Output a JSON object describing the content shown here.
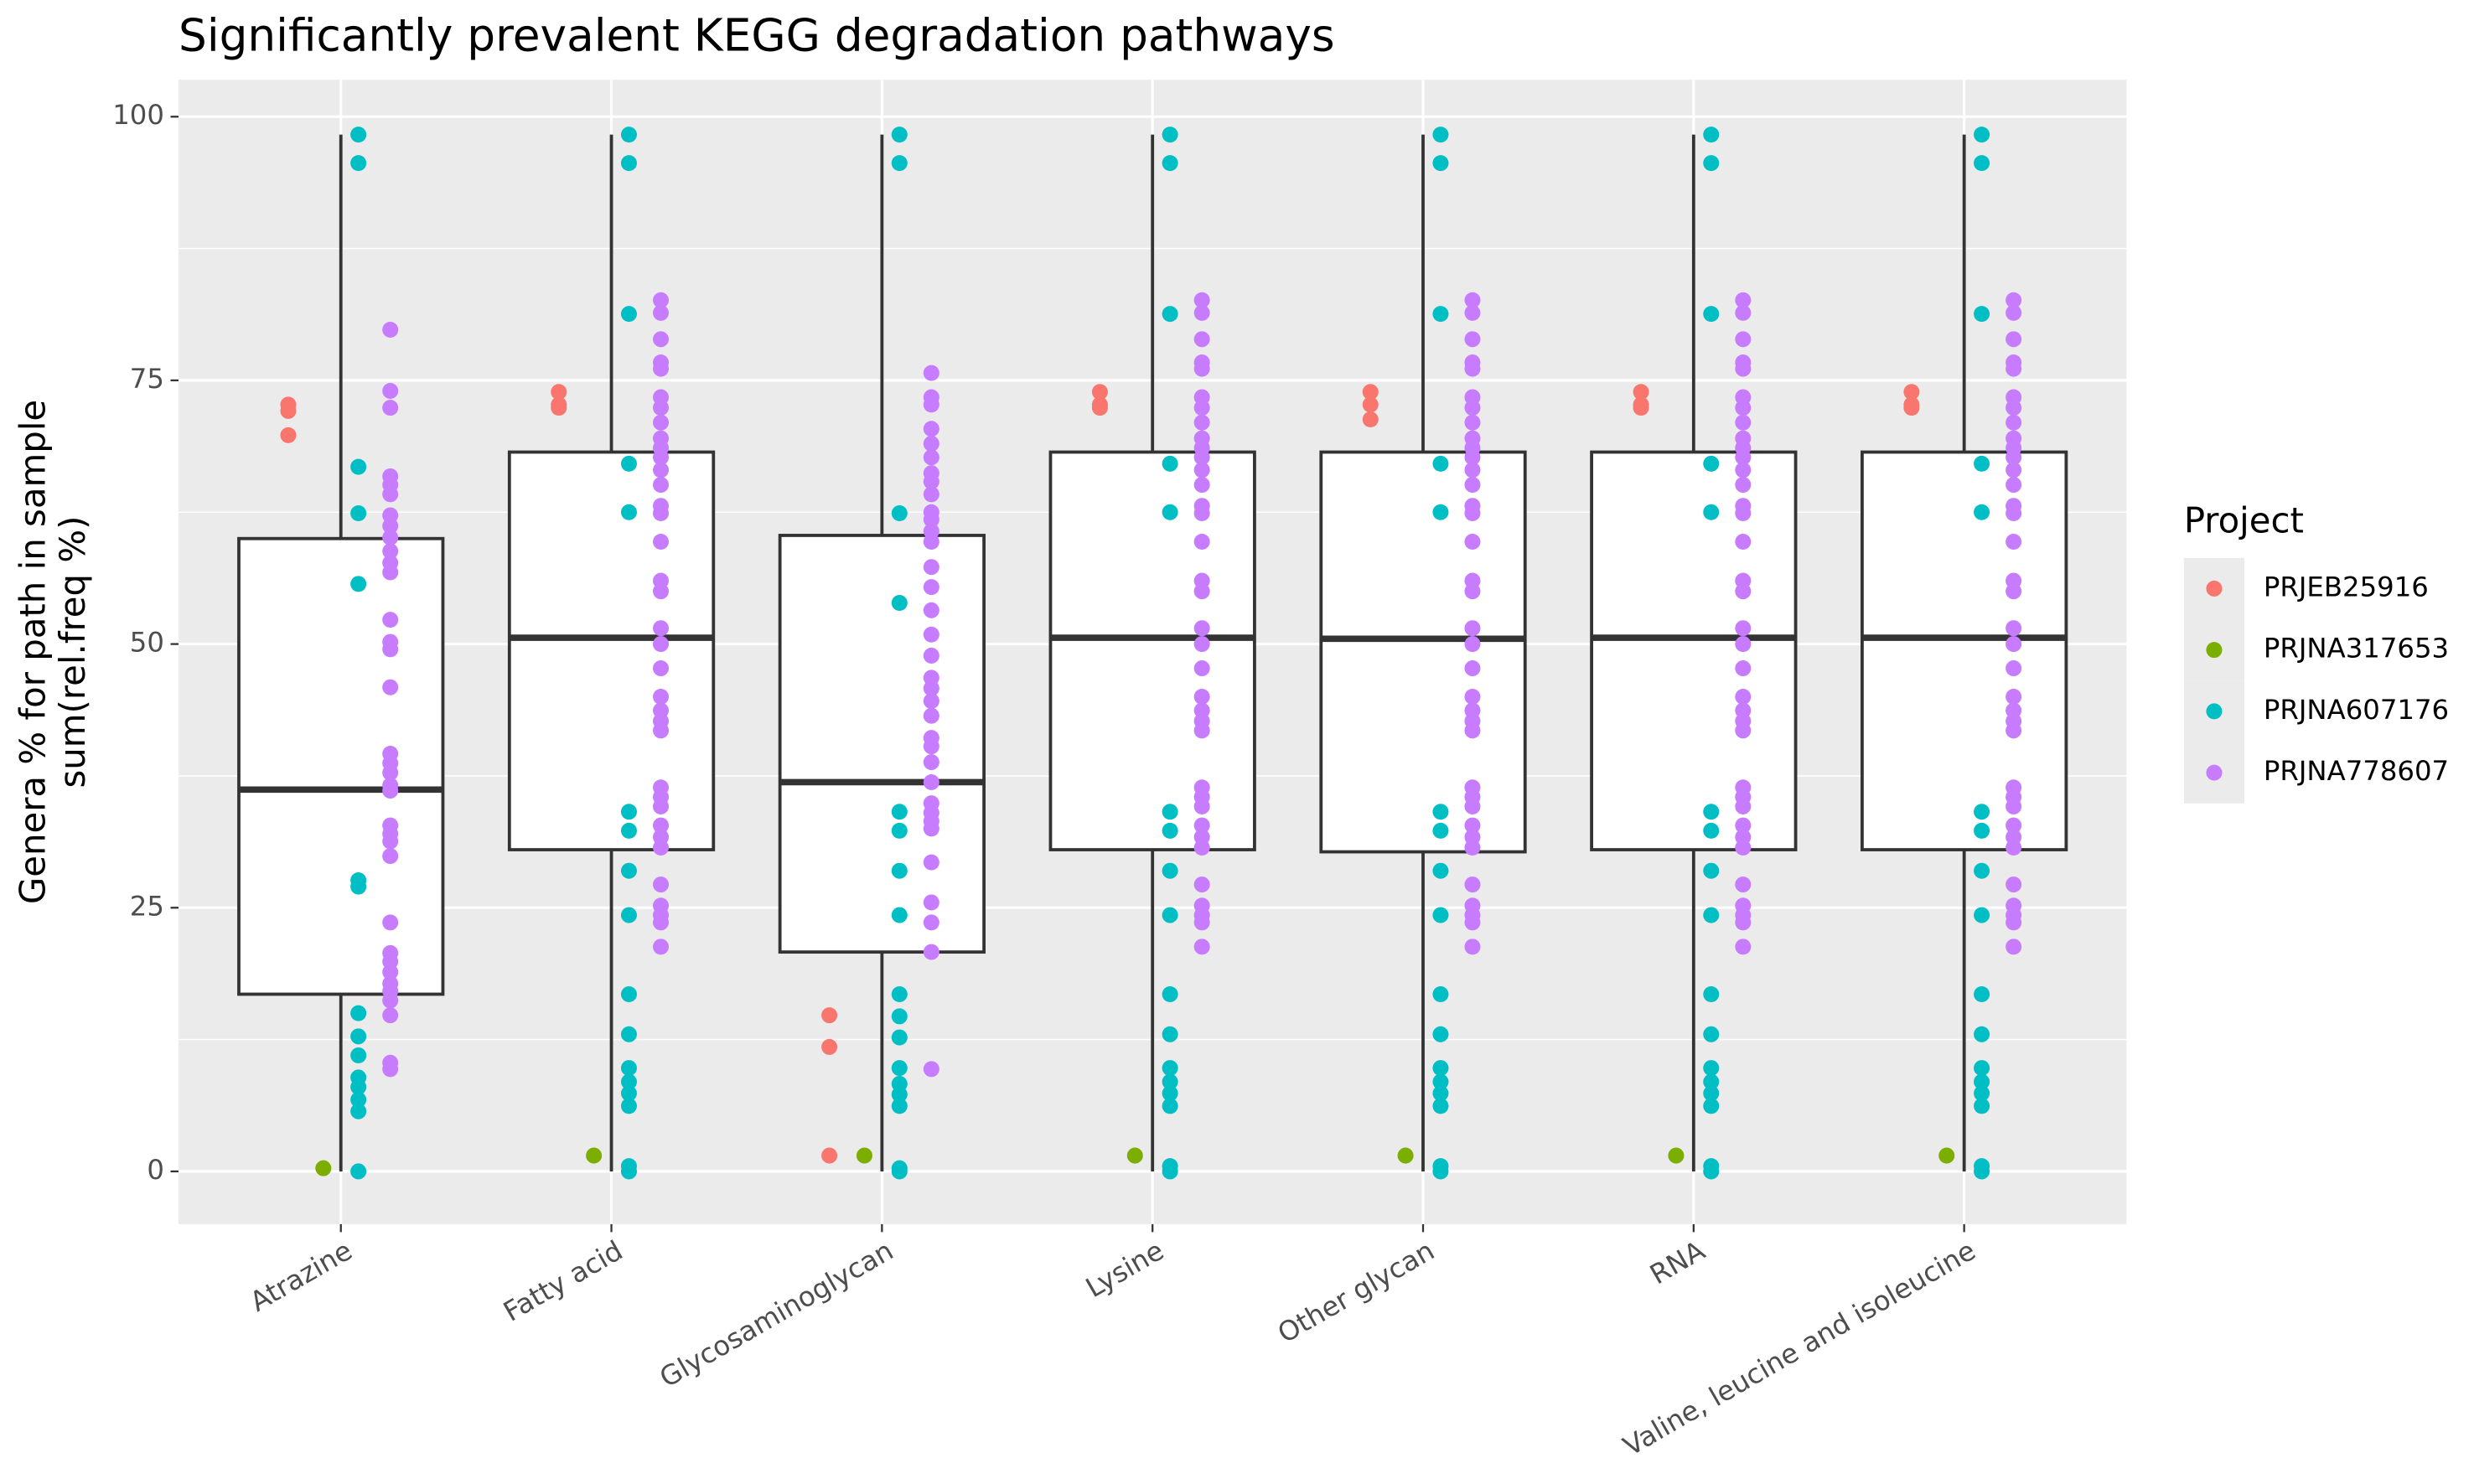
{
  "chart_data": {
    "type": "box",
    "title": "Significantly prevalent KEGG degradation pathways",
    "ylabel": [
      "Genera % for path in sample",
      "sum(rel.freq %)"
    ],
    "legend_title": "Project",
    "categories": [
      "Atrazine",
      "Fatty acid",
      "Glycosaminoglycan",
      "Lysine",
      "Other glycan",
      "RNA",
      "Valine, leucine and isoleucine"
    ],
    "ylim": [
      -5,
      103.5
    ],
    "yticks": [
      0,
      25,
      50,
      75,
      100
    ],
    "yminor": [
      12.5,
      37.5,
      62.5,
      87.5
    ],
    "grid": true,
    "legend": "right",
    "boxes": [
      {
        "whislo": 0,
        "q1": 16.8,
        "med": 36.2,
        "q3": 60.0,
        "whishi": 98.3
      },
      {
        "whislo": 0,
        "q1": 30.5,
        "med": 50.6,
        "q3": 68.2,
        "whishi": 98.3
      },
      {
        "whislo": 0,
        "q1": 20.8,
        "med": 36.9,
        "q3": 60.3,
        "whishi": 98.3
      },
      {
        "whislo": 0,
        "q1": 30.5,
        "med": 50.6,
        "q3": 68.2,
        "whishi": 98.3
      },
      {
        "whislo": 0,
        "q1": 30.3,
        "med": 50.5,
        "q3": 68.2,
        "whishi": 98.3
      },
      {
        "whislo": 0,
        "q1": 30.5,
        "med": 50.6,
        "q3": 68.2,
        "whishi": 98.3
      },
      {
        "whislo": 0,
        "q1": 30.5,
        "med": 50.6,
        "q3": 68.2,
        "whishi": 98.3
      }
    ],
    "series": [
      {
        "name": "PRJEB25916",
        "color": "#F8766D",
        "values": [
          [
            72.7,
            72.1,
            69.8
          ],
          [
            73.9,
            72.7,
            72.4
          ],
          [
            14.8,
            11.8,
            1.5
          ],
          [
            73.9,
            72.7,
            72.4
          ],
          [
            73.9,
            72.7,
            71.3
          ],
          [
            73.9,
            72.7,
            72.4
          ],
          [
            73.9,
            72.7,
            72.4
          ]
        ]
      },
      {
        "name": "PRJNA317653",
        "color": "#7CAE00",
        "values": [
          [
            0.3
          ],
          [
            1.5
          ],
          [
            1.5
          ],
          [
            1.5
          ],
          [
            1.5
          ],
          [
            1.5
          ],
          [
            1.5
          ]
        ]
      },
      {
        "name": "PRJNA607176",
        "color": "#00BFC4",
        "values": [
          [
            98.3,
            95.6,
            66.8,
            62.4,
            55.7,
            27.6,
            27.0,
            15.0,
            12.8,
            11.0,
            8.9,
            8.0,
            6.8,
            5.7,
            0
          ],
          [
            98.3,
            95.6,
            81.3,
            67.1,
            62.5,
            34.1,
            32.3,
            28.5,
            24.3,
            16.8,
            13.0,
            9.8,
            8.5,
            7.4,
            6.2,
            0.5,
            0
          ],
          [
            98.3,
            95.6,
            62.4,
            53.9,
            34.1,
            32.3,
            28.5,
            24.3,
            16.8,
            14.7,
            12.7,
            9.8,
            8.3,
            7.3,
            6.2,
            0.3,
            0
          ],
          [
            98.3,
            95.6,
            81.3,
            67.1,
            62.5,
            34.1,
            32.3,
            28.5,
            24.3,
            16.8,
            13.0,
            9.8,
            8.5,
            7.4,
            6.2,
            0.5,
            0
          ],
          [
            98.3,
            95.6,
            81.3,
            67.1,
            62.5,
            34.1,
            32.3,
            28.5,
            24.3,
            16.8,
            13.0,
            9.8,
            8.5,
            7.4,
            6.2,
            0.5,
            0
          ],
          [
            98.3,
            95.6,
            81.3,
            67.1,
            62.5,
            34.1,
            32.3,
            28.5,
            24.3,
            16.8,
            13.0,
            9.8,
            8.5,
            7.4,
            6.2,
            0.5,
            0
          ],
          [
            98.3,
            95.6,
            81.3,
            67.1,
            62.5,
            34.1,
            32.3,
            28.5,
            24.3,
            16.8,
            13.0,
            9.8,
            8.5,
            7.4,
            6.2,
            0.5,
            0
          ]
        ]
      },
      {
        "name": "PRJNA778607",
        "color": "#C77CFF",
        "values": [
          [
            79.8,
            74.0,
            72.4,
            65.9,
            65.1,
            64.2,
            62.2,
            61.2,
            60.1,
            58.8,
            57.7,
            56.8,
            52.3,
            50.2,
            49.5,
            45.9,
            39.6,
            38.7,
            37.8,
            36.6,
            36.1,
            32.8,
            32.0,
            31.3,
            29.9,
            23.6,
            20.7,
            19.9,
            18.9,
            17.8,
            17.1,
            16.2,
            14.8,
            10.3,
            9.7
          ],
          [
            82.6,
            81.4,
            78.9,
            76.7,
            76.1,
            73.4,
            72.4,
            71.0,
            69.5,
            68.6,
            67.7,
            66.5,
            65.1,
            63.1,
            62.4,
            59.7,
            56.0,
            55.0,
            51.5,
            50.0,
            47.7,
            45.0,
            43.7,
            42.7,
            41.8,
            36.4,
            35.5,
            34.6,
            32.8,
            31.7,
            30.7,
            27.2,
            25.2,
            24.3,
            23.6,
            21.3
          ],
          [
            75.7,
            73.4,
            72.7,
            70.4,
            69.0,
            67.7,
            66.2,
            65.4,
            64.2,
            62.5,
            61.8,
            60.7,
            59.7,
            57.3,
            55.4,
            53.2,
            50.9,
            48.9,
            46.8,
            45.8,
            44.6,
            43.2,
            41.1,
            40.3,
            38.8,
            36.9,
            34.9,
            34.0,
            33.2,
            32.5,
            29.3,
            25.5,
            23.6,
            20.8,
            9.7
          ],
          [
            82.6,
            81.4,
            78.9,
            76.7,
            76.1,
            73.4,
            72.4,
            71.0,
            69.5,
            68.6,
            67.7,
            66.5,
            65.1,
            63.1,
            62.4,
            59.7,
            56.0,
            55.0,
            51.5,
            50.0,
            47.7,
            45.0,
            43.7,
            42.7,
            41.8,
            36.4,
            35.5,
            34.6,
            32.8,
            31.7,
            30.7,
            27.2,
            25.2,
            24.3,
            23.6,
            21.3
          ],
          [
            82.6,
            81.4,
            78.9,
            76.7,
            76.1,
            73.4,
            72.4,
            71.0,
            69.5,
            68.6,
            67.7,
            66.5,
            65.1,
            63.1,
            62.4,
            59.7,
            56.0,
            55.0,
            51.5,
            50.0,
            47.7,
            45.0,
            43.7,
            42.7,
            41.8,
            36.4,
            35.5,
            34.6,
            32.8,
            31.7,
            30.7,
            27.2,
            25.2,
            24.3,
            23.6,
            21.3
          ],
          [
            82.6,
            81.4,
            78.9,
            76.7,
            76.1,
            73.4,
            72.4,
            71.0,
            69.5,
            68.6,
            67.7,
            66.5,
            65.1,
            63.1,
            62.4,
            59.7,
            56.0,
            55.0,
            51.5,
            50.0,
            47.7,
            45.0,
            43.7,
            42.7,
            41.8,
            36.4,
            35.5,
            34.6,
            32.8,
            31.7,
            30.7,
            27.2,
            25.2,
            24.3,
            23.6,
            21.3
          ],
          [
            82.6,
            81.4,
            78.9,
            76.7,
            76.1,
            73.4,
            72.4,
            71.0,
            69.5,
            68.6,
            67.7,
            66.5,
            65.1,
            63.1,
            62.4,
            59.7,
            56.0,
            55.0,
            51.5,
            50.0,
            47.7,
            45.0,
            43.7,
            42.7,
            41.8,
            36.4,
            35.5,
            34.6,
            32.8,
            31.7,
            30.7,
            27.2,
            25.2,
            24.3,
            23.6,
            21.3
          ]
        ]
      }
    ]
  }
}
